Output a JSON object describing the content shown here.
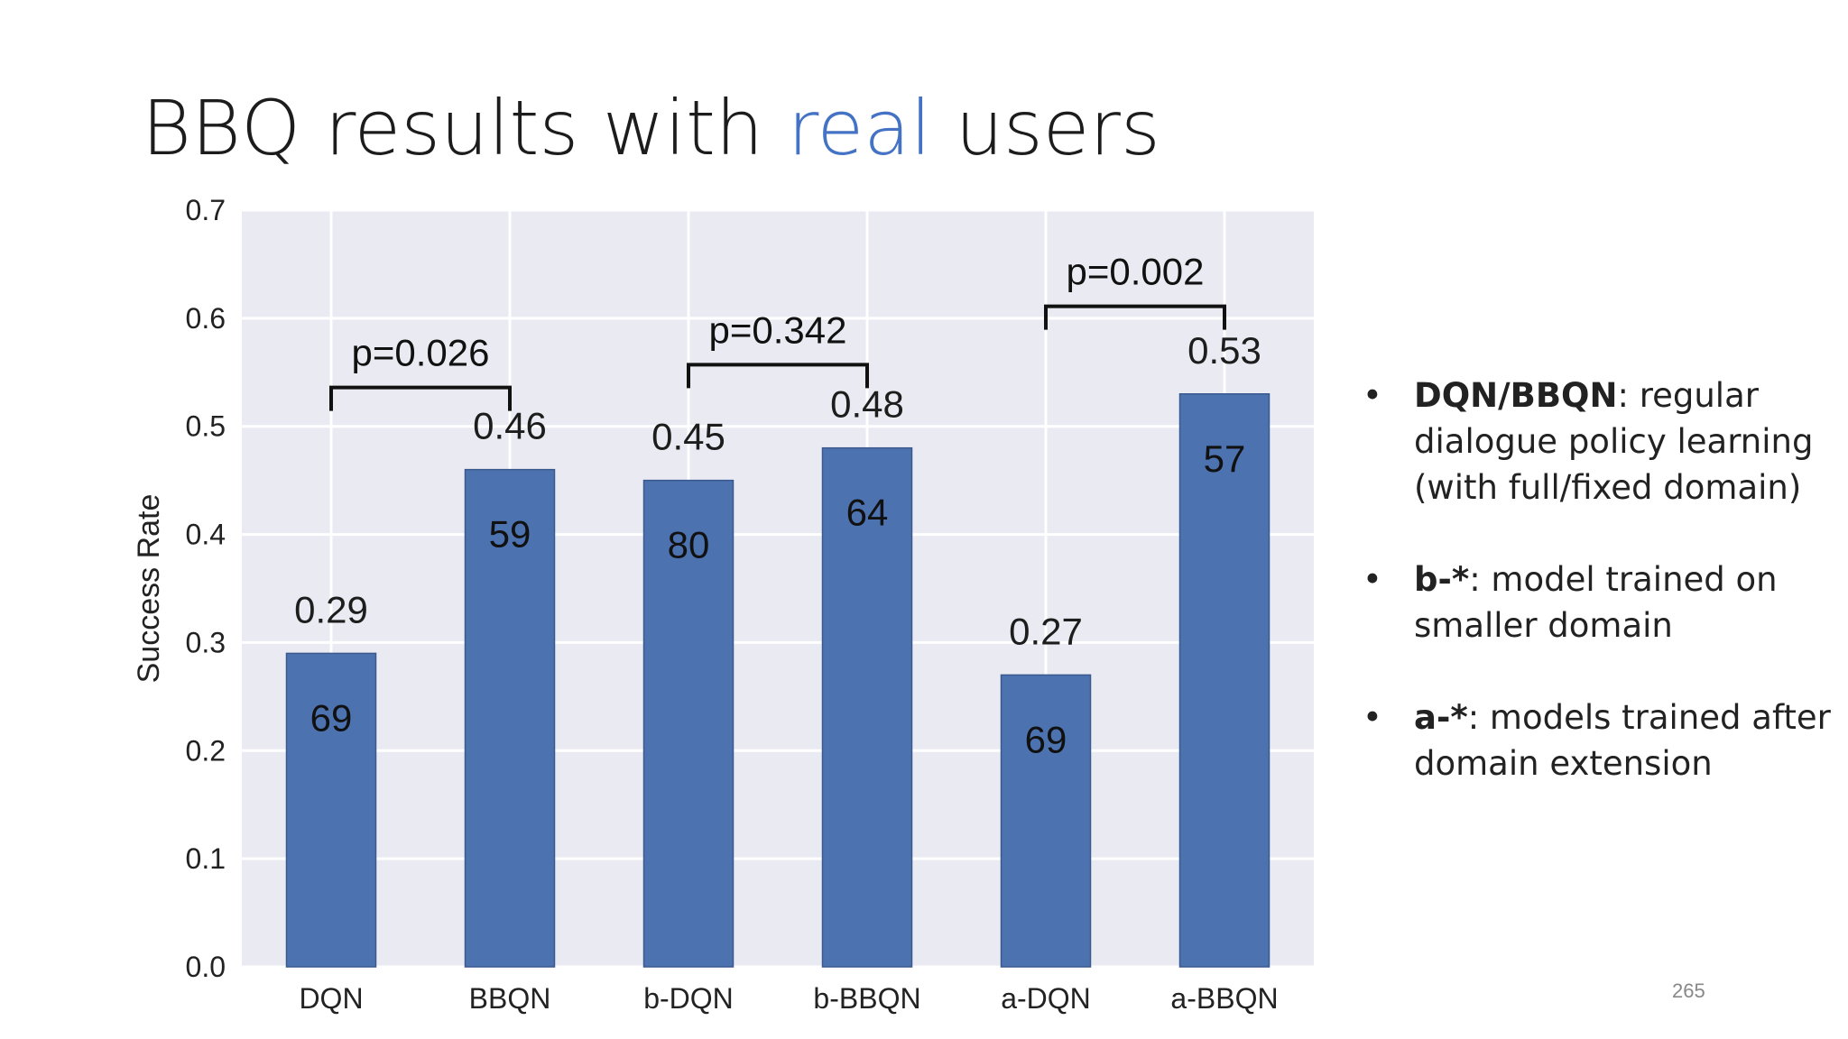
{
  "slide": {
    "title_part1": "BBQ results with ",
    "title_highlight": "real",
    "title_part2": " users",
    "highlight_color": "#4472c4",
    "page_number": "265"
  },
  "notes": [
    {
      "bold": "DQN/BBQN",
      "text": ": regular dialogue policy learning (with full/fixed domain)"
    },
    {
      "bold": "b-*",
      "text": ": model trained on smaller domain"
    },
    {
      "bold": "a-*",
      "text": ": models trained after domain extension"
    }
  ],
  "chart_data": {
    "type": "bar",
    "categories": [
      "DQN",
      "BBQN",
      "b-DQN",
      "b-BBQN",
      "a-DQN",
      "a-BBQN"
    ],
    "values": [
      0.29,
      0.46,
      0.45,
      0.48,
      0.27,
      0.53
    ],
    "value_labels": [
      "0.29",
      "0.46",
      "0.45",
      "0.48",
      "0.27",
      "0.53"
    ],
    "inner_labels": [
      "69",
      "59",
      "80",
      "64",
      "69",
      "57"
    ],
    "ylabel": "Success Rate",
    "ylim": [
      0,
      0.7
    ],
    "yticks": [
      "0.0",
      "0.1",
      "0.2",
      "0.3",
      "0.4",
      "0.5",
      "0.6",
      "0.7"
    ],
    "grid": true,
    "bar_color": "#4c72b0",
    "plot_background": "#eaeaf2",
    "annotations": [
      {
        "from": 0,
        "to": 1,
        "label": "p=0.026",
        "y": 0.536
      },
      {
        "from": 2,
        "to": 3,
        "label": "p=0.342",
        "y": 0.557
      },
      {
        "from": 4,
        "to": 5,
        "label": "p=0.002",
        "y": 0.611
      }
    ]
  }
}
